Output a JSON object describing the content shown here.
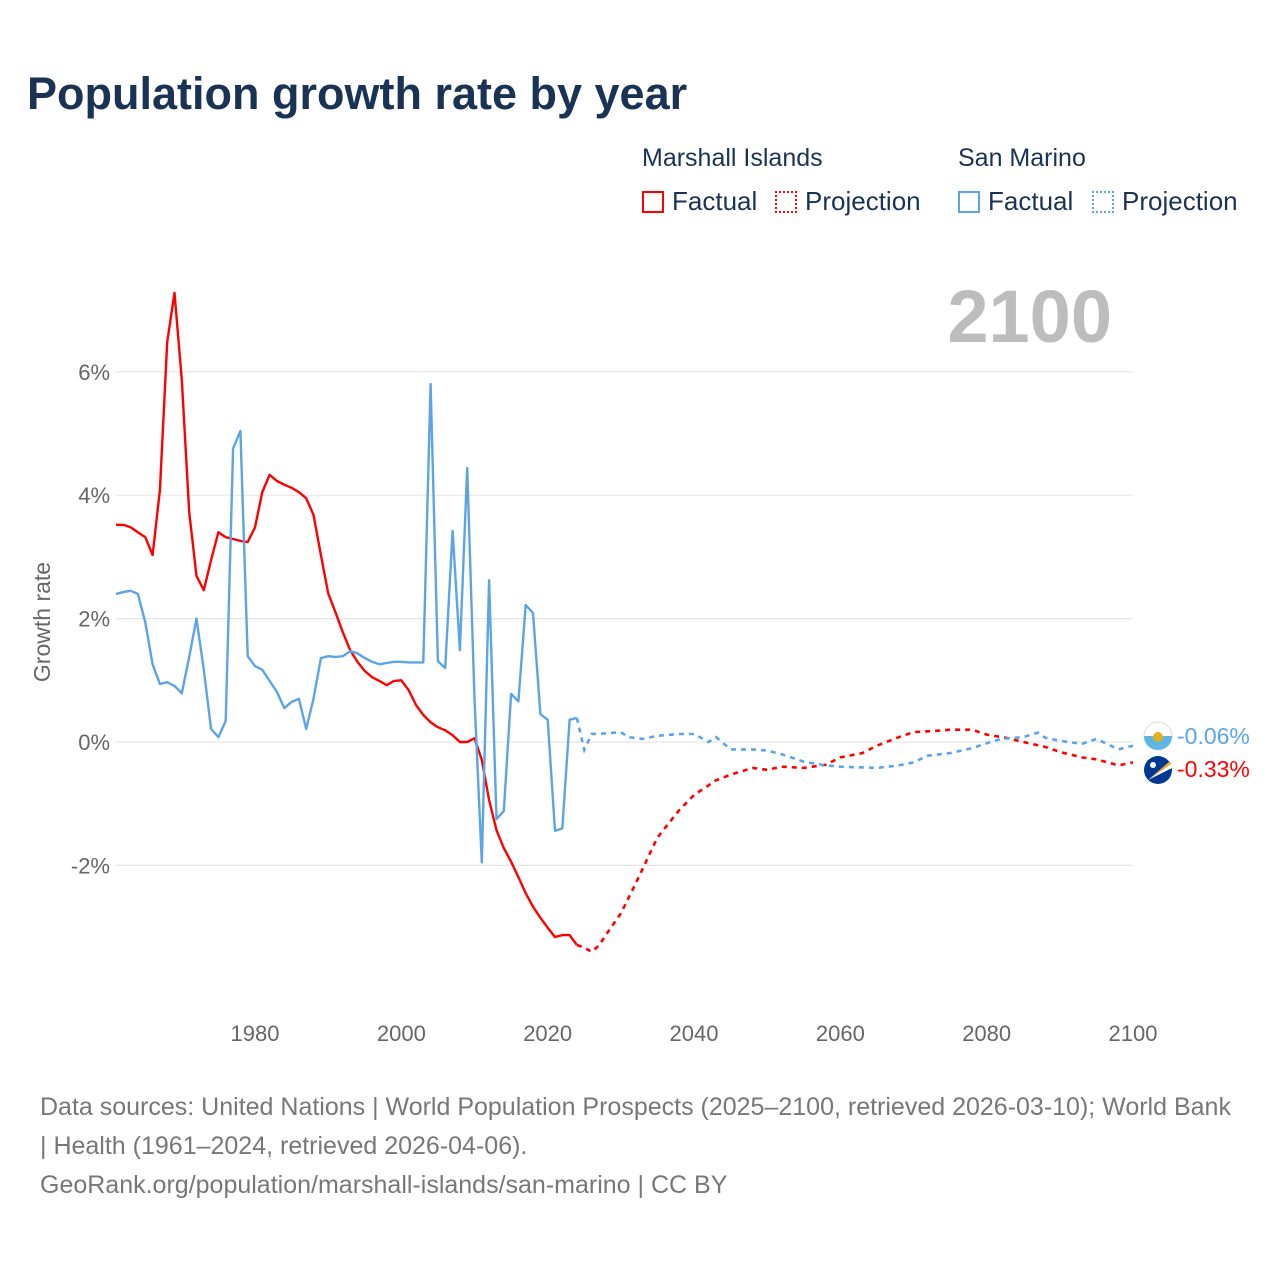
{
  "title": "Population growth rate by year",
  "legend": [
    {
      "country": "Marshall Islands",
      "color": "#ff0000",
      "factual": "Factual",
      "projection": "Projection"
    },
    {
      "country": "San Marino",
      "color": "#5ba4e8",
      "factual": "Factual",
      "projection": "Projection"
    }
  ],
  "year_display": "2100",
  "footer": {
    "sources": "Data sources: United Nations | World Population Prospects (2025–2100, retrieved 2026-03-10); World Bank | Health (1961–2024, retrieved 2026-04-06).",
    "link": "GeoRank.org/population/marshall-islands/san-marino | CC BY"
  },
  "chart_data": {
    "type": "line",
    "title": "Population growth rate by year",
    "xlabel": "",
    "ylabel": "Growth rate",
    "xlim": [
      1961,
      2100
    ],
    "ylim": [
      -4.3,
      7.4
    ],
    "xticks": [
      1980,
      2000,
      2020,
      2040,
      2060,
      2080,
      2100
    ],
    "yticks": [
      {
        "v": 6,
        "label": "6%"
      },
      {
        "v": 4,
        "label": "4%"
      },
      {
        "v": 2,
        "label": "2%"
      },
      {
        "v": 0,
        "label": "0%"
      },
      {
        "v": -2,
        "label": "-2%"
      }
    ],
    "grid": true,
    "legend_position": "top-right",
    "series": [
      {
        "name": "Marshall Islands",
        "color": "#ff0000",
        "end_label": "-0.33%",
        "factual": [
          [
            1961,
            3.52
          ],
          [
            1962,
            3.52
          ],
          [
            1963,
            3.48
          ],
          [
            1964,
            3.4
          ],
          [
            1965,
            3.32
          ],
          [
            1966,
            3.03
          ],
          [
            1967,
            4.08
          ],
          [
            1968,
            6.48
          ],
          [
            1969,
            7.28
          ],
          [
            1970,
            5.87
          ],
          [
            1971,
            3.73
          ],
          [
            1972,
            2.69
          ],
          [
            1973,
            2.46
          ],
          [
            1974,
            2.95
          ],
          [
            1975,
            3.4
          ],
          [
            1976,
            3.32
          ],
          [
            1977,
            3.29
          ],
          [
            1978,
            3.26
          ],
          [
            1979,
            3.24
          ],
          [
            1980,
            3.48
          ],
          [
            1981,
            4.05
          ],
          [
            1982,
            4.33
          ],
          [
            1983,
            4.23
          ],
          [
            1984,
            4.17
          ],
          [
            1985,
            4.12
          ],
          [
            1986,
            4.05
          ],
          [
            1987,
            3.95
          ],
          [
            1988,
            3.68
          ],
          [
            1989,
            3.03
          ],
          [
            1990,
            2.41
          ],
          [
            1991,
            2.1
          ],
          [
            1992,
            1.78
          ],
          [
            1993,
            1.49
          ],
          [
            1994,
            1.3
          ],
          [
            1995,
            1.15
          ],
          [
            1996,
            1.05
          ],
          [
            1997,
            0.99
          ],
          [
            1998,
            0.92
          ],
          [
            1999,
            0.99
          ],
          [
            2000,
            1.0
          ],
          [
            2001,
            0.84
          ],
          [
            2002,
            0.6
          ],
          [
            2003,
            0.44
          ],
          [
            2004,
            0.32
          ],
          [
            2005,
            0.24
          ],
          [
            2006,
            0.19
          ],
          [
            2007,
            0.11
          ],
          [
            2008,
            0.0
          ],
          [
            2009,
            0.0
          ],
          [
            2010,
            0.06
          ],
          [
            2011,
            -0.29
          ],
          [
            2012,
            -0.94
          ],
          [
            2013,
            -1.43
          ],
          [
            2014,
            -1.72
          ],
          [
            2015,
            -1.94
          ],
          [
            2016,
            -2.19
          ],
          [
            2017,
            -2.45
          ],
          [
            2018,
            -2.67
          ],
          [
            2019,
            -2.85
          ],
          [
            2020,
            -3.01
          ],
          [
            2021,
            -3.16
          ],
          [
            2022,
            -3.13
          ],
          [
            2023,
            -3.13
          ],
          [
            2024,
            -3.29
          ]
        ],
        "projection": [
          [
            2024,
            -3.29
          ],
          [
            2025,
            -3.33
          ],
          [
            2026,
            -3.4
          ],
          [
            2027,
            -3.3
          ],
          [
            2028,
            -3.12
          ],
          [
            2029,
            -2.95
          ],
          [
            2030,
            -2.78
          ],
          [
            2032,
            -2.3
          ],
          [
            2035,
            -1.55
          ],
          [
            2038,
            -1.1
          ],
          [
            2040,
            -0.86
          ],
          [
            2043,
            -0.62
          ],
          [
            2045,
            -0.53
          ],
          [
            2048,
            -0.42
          ],
          [
            2050,
            -0.45
          ],
          [
            2052,
            -0.4
          ],
          [
            2055,
            -0.42
          ],
          [
            2058,
            -0.37
          ],
          [
            2060,
            -0.25
          ],
          [
            2063,
            -0.18
          ],
          [
            2065,
            -0.06
          ],
          [
            2068,
            0.08
          ],
          [
            2070,
            0.16
          ],
          [
            2073,
            0.18
          ],
          [
            2075,
            0.2
          ],
          [
            2078,
            0.2
          ],
          [
            2080,
            0.12
          ],
          [
            2083,
            0.06
          ],
          [
            2085,
            0.0
          ],
          [
            2088,
            -0.08
          ],
          [
            2090,
            -0.16
          ],
          [
            2093,
            -0.25
          ],
          [
            2095,
            -0.28
          ],
          [
            2098,
            -0.38
          ],
          [
            2100,
            -0.33
          ]
        ]
      },
      {
        "name": "San Marino",
        "color": "#5ba4e8",
        "end_label": "-0.06%",
        "factual": [
          [
            1961,
            2.4
          ],
          [
            1962,
            2.43
          ],
          [
            1963,
            2.45
          ],
          [
            1964,
            2.4
          ],
          [
            1965,
            1.94
          ],
          [
            1966,
            1.26
          ],
          [
            1967,
            0.94
          ],
          [
            1968,
            0.97
          ],
          [
            1969,
            0.91
          ],
          [
            1970,
            0.79
          ],
          [
            1971,
            1.38
          ],
          [
            1972,
            2.0
          ],
          [
            1973,
            1.17
          ],
          [
            1974,
            0.21
          ],
          [
            1975,
            0.08
          ],
          [
            1976,
            0.34
          ],
          [
            1977,
            4.76
          ],
          [
            1978,
            5.04
          ],
          [
            1979,
            1.39
          ],
          [
            1980,
            1.23
          ],
          [
            1981,
            1.17
          ],
          [
            1982,
            0.99
          ],
          [
            1983,
            0.81
          ],
          [
            1984,
            0.55
          ],
          [
            1985,
            0.65
          ],
          [
            1986,
            0.7
          ],
          [
            1987,
            0.21
          ],
          [
            1988,
            0.7
          ],
          [
            1989,
            1.36
          ],
          [
            1990,
            1.39
          ],
          [
            1991,
            1.38
          ],
          [
            1992,
            1.39
          ],
          [
            1993,
            1.47
          ],
          [
            1994,
            1.44
          ],
          [
            1995,
            1.36
          ],
          [
            1996,
            1.3
          ],
          [
            1997,
            1.26
          ],
          [
            1998,
            1.28
          ],
          [
            1999,
            1.3
          ],
          [
            2000,
            1.3
          ],
          [
            2001,
            1.29
          ],
          [
            2002,
            1.29
          ],
          [
            2003,
            1.29
          ],
          [
            2004,
            5.8
          ],
          [
            2005,
            1.31
          ],
          [
            2006,
            1.2
          ],
          [
            2007,
            3.42
          ],
          [
            2008,
            1.49
          ],
          [
            2009,
            4.44
          ],
          [
            2010,
            0.7
          ],
          [
            2011,
            -1.95
          ],
          [
            2012,
            2.62
          ],
          [
            2013,
            -1.25
          ],
          [
            2014,
            -1.12
          ],
          [
            2015,
            0.78
          ],
          [
            2016,
            0.66
          ],
          [
            2017,
            2.22
          ],
          [
            2018,
            2.09
          ],
          [
            2019,
            0.45
          ],
          [
            2020,
            0.36
          ],
          [
            2021,
            -1.44
          ],
          [
            2022,
            -1.4
          ],
          [
            2023,
            0.36
          ],
          [
            2024,
            0.39
          ]
        ],
        "projection": [
          [
            2024,
            0.39
          ],
          [
            2025,
            -0.13
          ],
          [
            2026,
            0.13
          ],
          [
            2028,
            0.14
          ],
          [
            2030,
            0.16
          ],
          [
            2031,
            0.08
          ],
          [
            2033,
            0.05
          ],
          [
            2035,
            0.1
          ],
          [
            2038,
            0.13
          ],
          [
            2040,
            0.13
          ],
          [
            2042,
            0.0
          ],
          [
            2043,
            0.08
          ],
          [
            2045,
            -0.12
          ],
          [
            2048,
            -0.12
          ],
          [
            2050,
            -0.14
          ],
          [
            2052,
            -0.2
          ],
          [
            2055,
            -0.32
          ],
          [
            2058,
            -0.38
          ],
          [
            2060,
            -0.4
          ],
          [
            2065,
            -0.42
          ],
          [
            2068,
            -0.38
          ],
          [
            2070,
            -0.33
          ],
          [
            2072,
            -0.22
          ],
          [
            2075,
            -0.18
          ],
          [
            2078,
            -0.1
          ],
          [
            2080,
            -0.02
          ],
          [
            2082,
            0.05
          ],
          [
            2085,
            0.08
          ],
          [
            2087,
            0.15
          ],
          [
            2088,
            0.07
          ],
          [
            2090,
            0.02
          ],
          [
            2093,
            -0.03
          ],
          [
            2095,
            0.05
          ],
          [
            2098,
            -0.12
          ],
          [
            2100,
            -0.06
          ]
        ]
      }
    ]
  }
}
